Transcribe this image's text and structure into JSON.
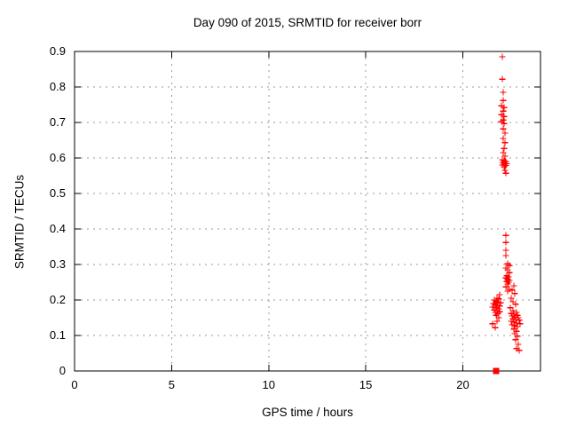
{
  "colors": {
    "marker": "#ff0000",
    "grid": "#9a9a9a",
    "axis": "#000000",
    "text": "#000000",
    "background": "#ffffff"
  },
  "chart_data": {
    "type": "scatter",
    "title": "Day 090 of 2015, SRMTID for receiver borr",
    "xlabel": "GPS time / hours",
    "ylabel": "SRMTID / TECUs",
    "xlim": [
      0,
      24
    ],
    "ylim": [
      0,
      0.9
    ],
    "grid": true,
    "legend": "none",
    "xticks": [
      {
        "value": 0,
        "label": "0"
      },
      {
        "value": 5,
        "label": "5"
      },
      {
        "value": 10,
        "label": "10"
      },
      {
        "value": 15,
        "label": "15"
      },
      {
        "value": 20,
        "label": "20"
      }
    ],
    "yticks": [
      {
        "value": 0,
        "label": "0"
      },
      {
        "value": 0.1,
        "label": "0.1"
      },
      {
        "value": 0.2,
        "label": "0.2"
      },
      {
        "value": 0.3,
        "label": "0.3"
      },
      {
        "value": 0.4,
        "label": "0.4"
      },
      {
        "value": 0.5,
        "label": "0.5"
      },
      {
        "value": 0.6,
        "label": "0.6"
      },
      {
        "value": 0.7,
        "label": "0.7"
      },
      {
        "value": 0.8,
        "label": "0.8"
      },
      {
        "value": 0.9,
        "label": "0.9"
      }
    ],
    "series": [
      {
        "name": "SRMTID points",
        "marker": "plus",
        "color": "#ff0000",
        "points": [
          [
            22.03,
            0.885
          ],
          [
            22.03,
            0.822
          ],
          [
            22.08,
            0.785
          ],
          [
            22.08,
            0.762
          ],
          [
            21.99,
            0.747
          ],
          [
            22.13,
            0.742
          ],
          [
            22.08,
            0.732
          ],
          [
            21.99,
            0.722
          ],
          [
            22.13,
            0.717
          ],
          [
            22.08,
            0.707
          ],
          [
            21.99,
            0.702
          ],
          [
            22.13,
            0.697
          ],
          [
            22.08,
            0.682
          ],
          [
            22.17,
            0.67
          ],
          [
            22.08,
            0.655
          ],
          [
            22.17,
            0.643
          ],
          [
            22.13,
            0.627
          ],
          [
            22.08,
            0.615
          ],
          [
            22.17,
            0.605
          ],
          [
            22.03,
            0.595
          ],
          [
            22.13,
            0.592
          ],
          [
            22.22,
            0.59
          ],
          [
            22.08,
            0.587
          ],
          [
            22.17,
            0.585
          ],
          [
            22.26,
            0.584
          ],
          [
            22.13,
            0.582
          ],
          [
            22.03,
            0.58
          ],
          [
            22.22,
            0.579
          ],
          [
            22.13,
            0.575
          ],
          [
            22.17,
            0.565
          ],
          [
            22.22,
            0.557
          ],
          [
            22.22,
            0.382
          ],
          [
            22.22,
            0.362
          ],
          [
            22.22,
            0.34
          ],
          [
            22.22,
            0.325
          ],
          [
            22.31,
            0.302
          ],
          [
            22.4,
            0.297
          ],
          [
            22.22,
            0.29
          ],
          [
            22.31,
            0.285
          ],
          [
            22.4,
            0.277
          ],
          [
            22.26,
            0.268
          ],
          [
            22.35,
            0.265
          ],
          [
            22.22,
            0.262
          ],
          [
            22.31,
            0.258
          ],
          [
            22.4,
            0.255
          ],
          [
            22.26,
            0.252
          ],
          [
            22.35,
            0.25
          ],
          [
            22.31,
            0.245
          ],
          [
            22.22,
            0.237
          ],
          [
            22.4,
            0.23
          ],
          [
            22.31,
            0.225
          ],
          [
            21.9,
            0.215
          ],
          [
            21.76,
            0.205
          ],
          [
            21.85,
            0.203
          ],
          [
            21.62,
            0.2
          ],
          [
            21.72,
            0.198
          ],
          [
            21.81,
            0.195
          ],
          [
            21.94,
            0.192
          ],
          [
            21.58,
            0.19
          ],
          [
            21.67,
            0.188
          ],
          [
            21.76,
            0.185
          ],
          [
            21.9,
            0.183
          ],
          [
            21.53,
            0.18
          ],
          [
            21.72,
            0.178
          ],
          [
            21.85,
            0.175
          ],
          [
            21.62,
            0.172
          ],
          [
            21.76,
            0.17
          ],
          [
            21.9,
            0.167
          ],
          [
            21.67,
            0.165
          ],
          [
            21.81,
            0.162
          ],
          [
            21.72,
            0.157
          ],
          [
            21.85,
            0.15
          ],
          [
            21.76,
            0.14
          ],
          [
            21.53,
            0.133
          ],
          [
            21.67,
            0.122
          ],
          [
            22.63,
            0.24
          ],
          [
            22.54,
            0.228
          ],
          [
            22.67,
            0.218
          ],
          [
            22.49,
            0.205
          ],
          [
            22.58,
            0.195
          ],
          [
            22.72,
            0.188
          ],
          [
            22.45,
            0.178
          ],
          [
            22.58,
            0.17
          ],
          [
            22.77,
            0.165
          ],
          [
            22.49,
            0.162
          ],
          [
            22.63,
            0.16
          ],
          [
            22.81,
            0.157
          ],
          [
            22.54,
            0.155
          ],
          [
            22.67,
            0.152
          ],
          [
            22.86,
            0.15
          ],
          [
            22.58,
            0.147
          ],
          [
            22.72,
            0.145
          ],
          [
            22.9,
            0.143
          ],
          [
            22.49,
            0.14
          ],
          [
            22.63,
            0.138
          ],
          [
            22.77,
            0.135
          ],
          [
            22.95,
            0.133
          ],
          [
            22.54,
            0.13
          ],
          [
            22.67,
            0.128
          ],
          [
            22.81,
            0.125
          ],
          [
            22.63,
            0.118
          ],
          [
            22.77,
            0.112
          ],
          [
            22.67,
            0.105
          ],
          [
            22.81,
            0.098
          ],
          [
            22.72,
            0.088
          ],
          [
            22.86,
            0.075
          ],
          [
            22.77,
            0.063
          ],
          [
            22.9,
            0.058
          ]
        ]
      },
      {
        "name": "zero marker",
        "marker": "filled-square",
        "color": "#ff0000",
        "points": [
          [
            21.71,
            0.0
          ]
        ]
      }
    ]
  }
}
